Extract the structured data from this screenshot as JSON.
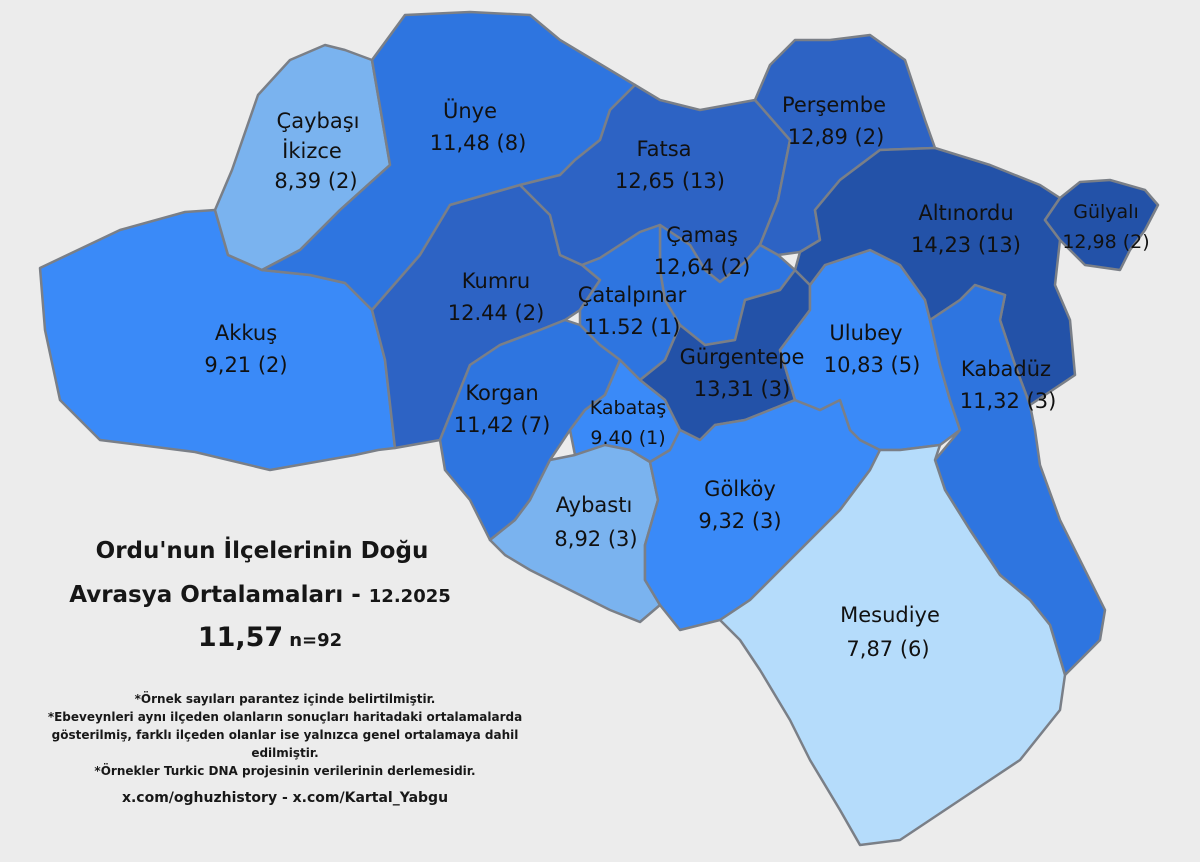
{
  "title": {
    "line1": "Ordu'nun İlçelerinin Doğu",
    "line2": "Avrasya Ortalamaları -",
    "date": "12.2025",
    "average": "11,57",
    "n": "n=92"
  },
  "notes": [
    "*Örnek sayıları parantez içinde belirtilmiştir.",
    "*Ebeveynleri aynı ilçeden olanların sonuçları haritadaki ortalamalarda",
    "gösterilmiş, farklı ilçeden olanlar ise yalnızca genel ortalamaya dahil edilmiştir.",
    "*Örnekler Turkic DNA projesinin verilerinin derlemesidir."
  ],
  "credit": "x.com/oghuzhistory - x.com/Kartal_Yabgu",
  "colors": {
    "level_1": "#b5dcfb",
    "level_2": "#7ab3ef",
    "level_3": "#3a8af8",
    "level_4": "#2e75e0",
    "level_5": "#2d63c4",
    "level_6": "#2352a8",
    "border": "#7a7f87",
    "background": "#ececec"
  },
  "districts": [
    {
      "id": "caybasi-ikizce",
      "name": "Çaybaşı\nİkizce",
      "value": "8,39",
      "count": "(2)"
    },
    {
      "id": "unye",
      "name": "Ünye",
      "value": "11,48",
      "count": "(8)"
    },
    {
      "id": "fatsa",
      "name": "Fatsa",
      "value": "12,65",
      "count": "(13)"
    },
    {
      "id": "persembe",
      "name": "Perşembe",
      "value": "12,89",
      "count": "(2)"
    },
    {
      "id": "altinordu",
      "name": "Altınordu",
      "value": "14,23",
      "count": "(13)"
    },
    {
      "id": "gulyali",
      "name": "Gülyalı",
      "value": "12,98",
      "count": "(2)"
    },
    {
      "id": "camas",
      "name": "Çamaş",
      "value": "12,64",
      "count": "(2)"
    },
    {
      "id": "kumru",
      "name": "Kumru",
      "value": "12.44",
      "count": "(2)"
    },
    {
      "id": "catalpinar",
      "name": "Çatalpınar",
      "value": "11.52",
      "count": "(1)"
    },
    {
      "id": "akkus",
      "name": "Akkuş",
      "value": "9,21",
      "count": "(2)"
    },
    {
      "id": "gurgentepe",
      "name": "Gürgentepe",
      "value": "13,31",
      "count": "(3)"
    },
    {
      "id": "ulubey",
      "name": "Ulubey",
      "value": "10,83",
      "count": "(5)"
    },
    {
      "id": "korgan",
      "name": "Korgan",
      "value": "11,42",
      "count": "(7)"
    },
    {
      "id": "kabatas",
      "name": "Kabataş",
      "value": "9.40",
      "count": "(1)"
    },
    {
      "id": "kabaduz",
      "name": "Kabadüz",
      "value": "11,32",
      "count": "(3)"
    },
    {
      "id": "aybasti",
      "name": "Aybastı",
      "value": "8,92",
      "count": "(3)"
    },
    {
      "id": "golkoy",
      "name": "Gölköy",
      "value": "9,32",
      "count": "(3)"
    },
    {
      "id": "mesudiye",
      "name": "Mesudiye",
      "value": "7,87",
      "count": "(6)"
    }
  ]
}
